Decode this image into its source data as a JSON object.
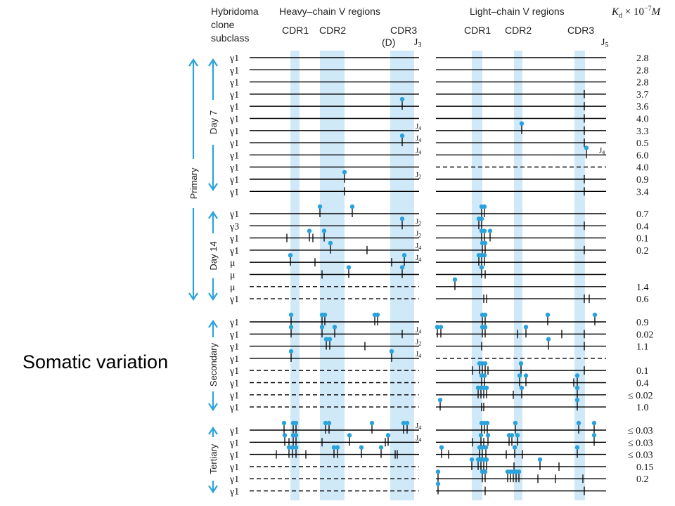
{
  "slide_title": "Somatic variation",
  "header": {
    "col_clone": [
      "Hybridoma",
      "clone",
      "subclass"
    ],
    "heavy": "Heavy–chain V regions",
    "light": "Light–chain V regions",
    "kd_prefix": "K",
    "kd_sub": "d",
    "kd_suffix": " × 10",
    "kd_exp": "−7",
    "kd_unit": "M",
    "cdr1": "CDR1",
    "cdr2": "CDR2",
    "cdr3": "CDR3",
    "d": "(D)",
    "j3": "J",
    "j3_sub": "3",
    "j5": "J",
    "j5_sub": "5"
  },
  "group_labels": {
    "primary": "Primary",
    "day7": "Day 7",
    "day14": "Day 14",
    "secondary": "Secondary",
    "tertiary": "Tertiary"
  },
  "colors": {
    "band": "#cfe9f9",
    "accent": "#2aa2dc",
    "line": "#000000"
  },
  "rows": [
    {
      "sub": "γ1",
      "kd": "2.8",
      "hd": false,
      "ld": false,
      "hm": [],
      "lm": []
    },
    {
      "sub": "γ1",
      "kd": "2.8",
      "hd": false,
      "ld": false,
      "hm": [],
      "lm": []
    },
    {
      "sub": "γ1",
      "kd": "2.8",
      "hd": false,
      "ld": false,
      "hm": [],
      "lm": []
    },
    {
      "sub": "γ1",
      "kd": "3.7",
      "hd": false,
      "ld": false,
      "hm": [],
      "lm": [
        [
          831,
          0
        ]
      ]
    },
    {
      "sub": "γ1",
      "kd": "3.6",
      "hd": false,
      "ld": false,
      "hm": [
        [
          572,
          1
        ]
      ],
      "lm": [
        [
          831,
          0
        ]
      ]
    },
    {
      "sub": "γ1",
      "kd": "4.0",
      "hd": false,
      "ld": false,
      "hm": [],
      "lm": [
        [
          831,
          0
        ]
      ]
    },
    {
      "sub": "γ1",
      "kd": "3.3",
      "hd": false,
      "ld": false,
      "hm": [],
      "lm": [
        [
          742,
          1
        ],
        [
          831,
          0
        ]
      ],
      "hj": "4"
    },
    {
      "sub": "γ1",
      "kd": "0.5",
      "hd": false,
      "ld": false,
      "hm": [
        [
          572,
          1
        ]
      ],
      "lm": [
        [
          831,
          0
        ]
      ],
      "hj": "4"
    },
    {
      "sub": "γ1",
      "kd": "6.0",
      "hd": false,
      "ld": false,
      "hm": [],
      "lm": [
        [
          834,
          1
        ]
      ],
      "hj": "4",
      "lj": "4"
    },
    {
      "sub": "γ1",
      "kd": "4.0",
      "hd": false,
      "ld": true,
      "hm": [],
      "lm": []
    },
    {
      "sub": "γ1",
      "kd": "0.9",
      "hd": false,
      "ld": false,
      "hm": [
        [
          490,
          1
        ]
      ],
      "lm": [
        [
          831,
          0
        ]
      ],
      "hj": "2"
    },
    {
      "sub": "γ1",
      "kd": "3.4",
      "hd": false,
      "ld": false,
      "hm": [
        [
          490,
          0
        ]
      ],
      "lm": [
        [
          831,
          0
        ]
      ]
    },
    {
      "sub": "γ1",
      "kd": "0.7",
      "hd": false,
      "ld": false,
      "hm": [
        [
          455,
          1
        ],
        [
          501,
          1
        ]
      ],
      "lm": [
        [
          685,
          1
        ],
        [
          689,
          1
        ]
      ]
    },
    {
      "sub": "γ3",
      "kd": "0.4",
      "hd": false,
      "ld": false,
      "hm": [
        [
          572,
          1
        ]
      ],
      "lm": [
        [
          681,
          1
        ],
        [
          685,
          1
        ],
        [
          831,
          0
        ]
      ],
      "hj": "2"
    },
    {
      "sub": "γ1",
      "kd": "0.1",
      "hd": false,
      "ld": false,
      "hm": [
        [
          408,
          0
        ],
        [
          440,
          1
        ],
        [
          445,
          0
        ],
        [
          461,
          1
        ]
      ],
      "lm": [
        [
          685,
          1
        ],
        [
          689,
          1
        ],
        [
          697,
          1
        ]
      ],
      "hj": "2"
    },
    {
      "sub": "γ1",
      "kd": "0.2",
      "hd": false,
      "ld": false,
      "hm": [
        [
          470,
          1
        ],
        [
          522,
          0
        ]
      ],
      "lm": [
        [
          686,
          1
        ],
        [
          690,
          1
        ],
        [
          831,
          0
        ]
      ],
      "hj": "4"
    },
    {
      "sub": "μ",
      "kd": "",
      "hd": false,
      "ld": false,
      "hm": [
        [
          413,
          1
        ],
        [
          448,
          0
        ],
        [
          557,
          0
        ],
        [
          575,
          1
        ]
      ],
      "lm": [
        [
          681,
          1
        ],
        [
          685,
          1
        ],
        [
          689,
          1
        ]
      ],
      "hj": "4"
    },
    {
      "sub": "μ",
      "kd": "",
      "hd": false,
      "ld": false,
      "hm": [
        [
          458,
          0
        ],
        [
          496,
          1
        ],
        [
          572,
          1
        ]
      ],
      "lm": [
        [
          685,
          1
        ],
        [
          690,
          0
        ]
      ]
    },
    {
      "sub": "μ",
      "kd": "1.4",
      "hd": true,
      "ld": false,
      "hm": [],
      "lm": [
        [
          647,
          1
        ]
      ]
    },
    {
      "sub": "γ1",
      "kd": "0.6",
      "hd": true,
      "ld": false,
      "hm": [],
      "lm": [
        [
          688,
          0
        ],
        [
          692,
          0
        ],
        [
          831,
          0
        ],
        [
          838,
          0
        ]
      ]
    },
    {
      "sub": "γ1",
      "kd": "0.9",
      "hd": false,
      "ld": false,
      "hm": [
        [
          414,
          1
        ],
        [
          458,
          1
        ],
        [
          462,
          1
        ],
        [
          533,
          1
        ],
        [
          537,
          1
        ]
      ],
      "lm": [
        [
          686,
          1
        ],
        [
          690,
          1
        ],
        [
          779,
          1
        ],
        [
          846,
          1
        ]
      ]
    },
    {
      "sub": "γ1",
      "kd": "0.02",
      "hd": false,
      "ld": false,
      "hm": [
        [
          414,
          1
        ],
        [
          458,
          1
        ],
        [
          476,
          1
        ],
        [
          572,
          0
        ]
      ],
      "lm": [
        [
          622,
          1
        ],
        [
          627,
          1
        ],
        [
          686,
          1
        ],
        [
          690,
          1
        ],
        [
          736,
          0
        ],
        [
          748,
          1
        ],
        [
          799,
          0
        ],
        [
          831,
          0
        ]
      ],
      "hj": "4"
    },
    {
      "sub": "γ1",
      "kd": "1.1",
      "hd": false,
      "ld": false,
      "hm": [
        [
          464,
          1
        ],
        [
          469,
          1
        ],
        [
          519,
          0
        ]
      ],
      "lm": [
        [
          685,
          0
        ],
        [
          780,
          1
        ],
        [
          831,
          0
        ]
      ],
      "hj": "2"
    },
    {
      "sub": "γ1",
      "kd": "",
      "hd": false,
      "ld": true,
      "hm": [
        [
          414,
          1
        ],
        [
          557,
          1
        ]
      ],
      "lm": [],
      "hj": "4"
    },
    {
      "sub": "γ1",
      "kd": "0.1",
      "hd": true,
      "ld": false,
      "hm": [],
      "lm": [
        [
          672,
          0
        ],
        [
          682,
          1
        ],
        [
          686,
          1
        ],
        [
          690,
          1
        ],
        [
          694,
          0
        ],
        [
          741,
          1
        ],
        [
          831,
          0
        ]
      ]
    },
    {
      "sub": "γ1",
      "kd": "0.4",
      "hd": true,
      "ld": false,
      "hm": [],
      "lm": [
        [
          685,
          1
        ],
        [
          689,
          1
        ],
        [
          739,
          1
        ],
        [
          748,
          1
        ],
        [
          816,
          0
        ],
        [
          821,
          1
        ]
      ]
    },
    {
      "sub": "γ1",
      "kd": "≤ 0.02",
      "hd": true,
      "ld": false,
      "hm": [],
      "lm": [
        [
          680,
          1
        ],
        [
          684,
          1
        ],
        [
          688,
          1
        ],
        [
          692,
          1
        ],
        [
          730,
          0
        ],
        [
          742,
          1
        ],
        [
          821,
          1
        ]
      ]
    },
    {
      "sub": "γ1",
      "kd": "1.0",
      "hd": true,
      "ld": false,
      "hm": [],
      "lm": [
        [
          626,
          1
        ],
        [
          685,
          0
        ],
        [
          688,
          0
        ],
        [
          821,
          1
        ]
      ]
    },
    {
      "sub": "γ1",
      "kd": "≤ 0.03",
      "hd": false,
      "ld": false,
      "hm": [
        [
          404,
          1
        ],
        [
          417,
          1
        ],
        [
          421,
          1
        ],
        [
          463,
          1
        ],
        [
          468,
          1
        ],
        [
          529,
          1
        ],
        [
          574,
          1
        ],
        [
          579,
          1
        ]
      ],
      "lm": [
        [
          685,
          1
        ],
        [
          689,
          1
        ],
        [
          693,
          1
        ],
        [
          733,
          1
        ],
        [
          823,
          1
        ],
        [
          845,
          1
        ]
      ],
      "hj": "4"
    },
    {
      "sub": "γ1",
      "kd": "≤ 0.03",
      "hd": false,
      "ld": false,
      "hm": [
        [
          405,
          1
        ],
        [
          411,
          0
        ],
        [
          417,
          1
        ],
        [
          421,
          1
        ],
        [
          458,
          0
        ],
        [
          497,
          1
        ],
        [
          548,
          0
        ],
        [
          552,
          1
        ]
      ],
      "lm": [
        [
          672,
          0
        ],
        [
          684,
          1
        ],
        [
          688,
          0
        ],
        [
          694,
          1
        ],
        [
          724,
          1
        ],
        [
          728,
          1
        ],
        [
          736,
          1
        ],
        [
          845,
          1
        ]
      ],
      "hj": "4"
    },
    {
      "sub": "γ1",
      "kd": "≤ 0.03",
      "hd": false,
      "ld": false,
      "hm": [
        [
          393,
          0
        ],
        [
          411,
          1
        ],
        [
          416,
          1
        ],
        [
          421,
          1
        ],
        [
          435,
          0
        ],
        [
          475,
          1
        ],
        [
          480,
          1
        ],
        [
          514,
          1
        ],
        [
          542,
          1
        ],
        [
          562,
          0
        ],
        [
          565,
          0
        ]
      ],
      "lm": [
        [
          628,
          1
        ],
        [
          638,
          0
        ],
        [
          682,
          1
        ],
        [
          686,
          1
        ],
        [
          691,
          1
        ],
        [
          720,
          0
        ],
        [
          732,
          1
        ],
        [
          743,
          0
        ],
        [
          821,
          1
        ]
      ]
    },
    {
      "sub": "γ1",
      "kd": "0.15",
      "hd": true,
      "ld": false,
      "hm": [],
      "lm": [
        [
          671,
          1
        ],
        [
          680,
          1
        ],
        [
          684,
          1
        ],
        [
          688,
          1
        ],
        [
          692,
          1
        ],
        [
          731,
          0
        ],
        [
          768,
          1
        ],
        [
          795,
          0
        ]
      ]
    },
    {
      "sub": "γ1",
      "kd": "0.2",
      "hd": true,
      "ld": false,
      "hm": [],
      "lm": [
        [
          623,
          1
        ],
        [
          686,
          1
        ],
        [
          690,
          1
        ],
        [
          722,
          1
        ],
        [
          726,
          1
        ],
        [
          730,
          1
        ],
        [
          734,
          1
        ],
        [
          738,
          1
        ],
        [
          765,
          0
        ],
        [
          790,
          0
        ],
        [
          829,
          0
        ]
      ]
    },
    {
      "sub": "γ1",
      "kd": "",
      "hd": true,
      "ld": false,
      "hm": [],
      "lm": [
        [
          623,
          1
        ],
        [
          690,
          0
        ],
        [
          831,
          0
        ]
      ]
    }
  ]
}
